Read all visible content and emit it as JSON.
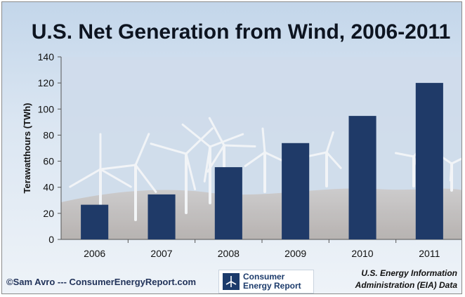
{
  "chart_data": {
    "type": "bar",
    "title": "U.S. Net Generation from Wind, 2006-2011",
    "ylabel": "Terawatthours (TWh)",
    "xlabel": "",
    "categories": [
      "2006",
      "2007",
      "2008",
      "2009",
      "2010",
      "2011"
    ],
    "values": [
      26.6,
      34.5,
      55.4,
      73.9,
      94.7,
      120.0
    ],
    "ylim": [
      0,
      140
    ],
    "yticks": [
      "0",
      "20",
      "40",
      "60",
      "80",
      "100",
      "120",
      "140"
    ],
    "grid": false,
    "bar_color": "#1f3a68"
  },
  "footer": {
    "credit": "©Sam Avro --- ConsumerEnergyReport.com",
    "logo_line1": "Consumer",
    "logo_line2": "Energy Report",
    "source_line1": "U.S. Energy Information",
    "source_line2": "Administration (EIA) Data"
  },
  "icons": {
    "logo": "wind-turbine-icon",
    "background": "wind-turbines-photo"
  }
}
